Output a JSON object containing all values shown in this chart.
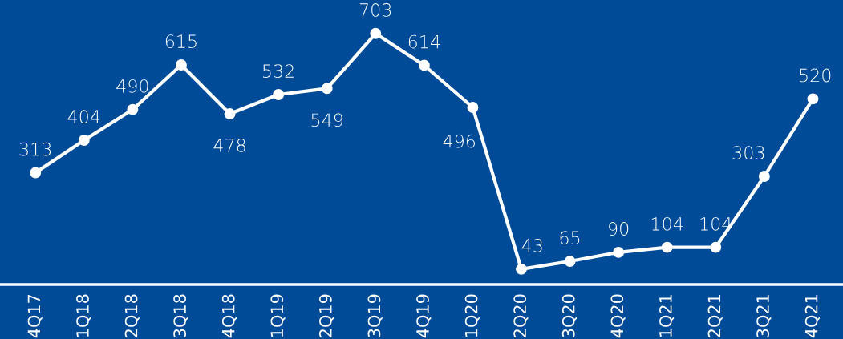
{
  "chart_data": {
    "type": "line",
    "categories": [
      "4Q17",
      "1Q18",
      "2Q18",
      "3Q18",
      "4Q18",
      "1Q19",
      "2Q19",
      "3Q19",
      "4Q19",
      "1Q20",
      "2Q20",
      "3Q20",
      "4Q20",
      "1Q21",
      "2Q21",
      "3Q21",
      "4Q21"
    ],
    "series": [
      {
        "color": "#ffffff",
        "values": [
          313,
          404,
          490,
          615,
          478,
          532,
          549,
          703,
          614,
          496,
          43,
          65,
          90,
          104,
          104,
          303,
          520
        ]
      }
    ],
    "data_labels": true,
    "marker": "circle",
    "line_style": "solid",
    "grid": false,
    "legend": false
  }
}
